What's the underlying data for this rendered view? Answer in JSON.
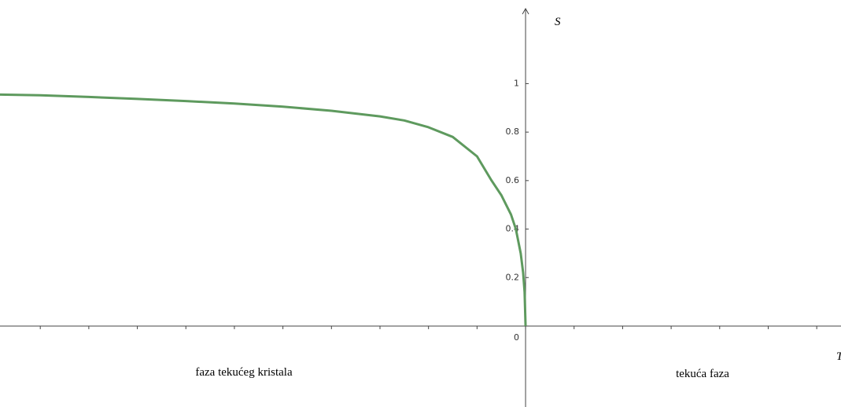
{
  "chart_data": {
    "type": "line",
    "x_label": "T",
    "y_label": "S",
    "annotations": [
      "faza tekućeg kristala",
      "tekuća faza"
    ],
    "x": [
      -10.83,
      -10,
      -9,
      -8,
      -7,
      -6,
      -5,
      -4,
      -3,
      -2.5,
      -2,
      -1.5,
      -1,
      -0.7,
      -0.5,
      -0.3,
      -0.2,
      -0.1,
      -0.05,
      -0.02,
      0
    ],
    "series": [
      {
        "name": "S",
        "color": "#5e9a5e",
        "values": [
          0.955,
          0.952,
          0.945,
          0.937,
          0.928,
          0.918,
          0.905,
          0.888,
          0.865,
          0.848,
          0.82,
          0.78,
          0.7,
          0.6,
          0.54,
          0.46,
          0.4,
          0.3,
          0.22,
          0.14,
          0
        ]
      }
    ],
    "xlim": [
      -10.83,
      6.5
    ],
    "ylim": [
      -0.334,
      1.345
    ],
    "xticks": [
      -10,
      -9,
      -8,
      -7,
      -6,
      -5,
      -4,
      -3,
      -2,
      -1,
      0,
      1,
      2,
      3,
      4,
      5,
      6
    ],
    "yticks": [
      0,
      0.2,
      0.4,
      0.6,
      0.8,
      1
    ]
  }
}
